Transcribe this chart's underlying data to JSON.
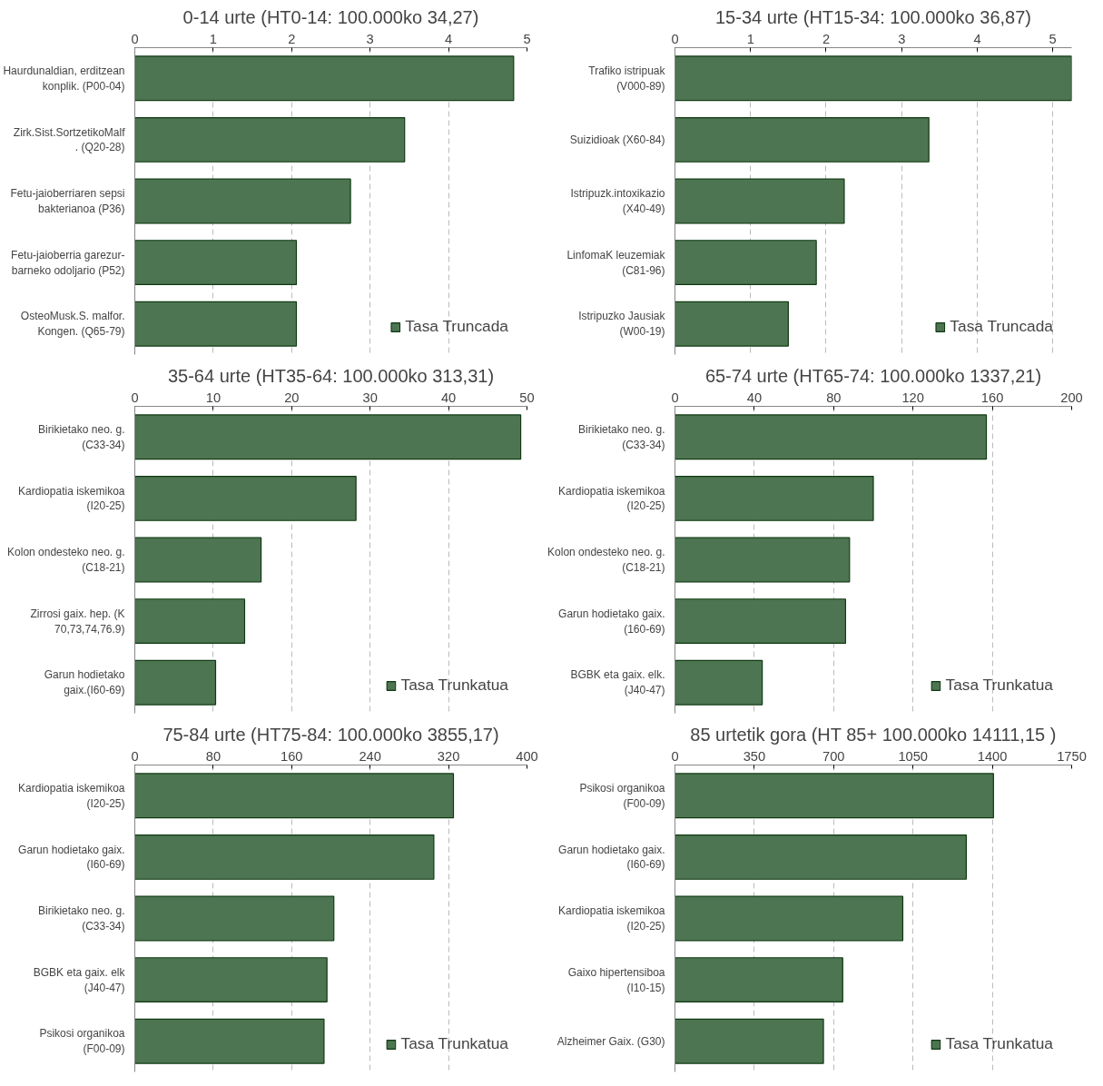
{
  "chart_data": [
    {
      "type": "bar",
      "orientation": "horizontal",
      "title": "0-14 urte (HT0-14: 100.000ko 34,27)",
      "categories": [
        "Haurdunaldian, erditzean konplik. (P00-04)",
        "Zirk.Sist.SortzetikoMalf. (Q20-28)",
        "Fetu-jaioberriaren sepsi bakterianoa (P36)",
        "Fetu-jaioberria garezur-barneko odoljario (P52)",
        "OsteoMusk.S. malfor. Kongen. (Q65-79)"
      ],
      "series": [
        {
          "name": "Tasa Truncada",
          "color": "#4e7552",
          "values": [
            4.83,
            3.44,
            2.75,
            2.06,
            2.06
          ]
        }
      ],
      "xlim": [
        0,
        5
      ],
      "xticks": [
        0,
        1,
        2,
        3,
        4,
        5
      ],
      "grid": "x",
      "legend": "bottom right"
    },
    {
      "type": "bar",
      "orientation": "horizontal",
      "title": "15-34 urte (HT15-34: 100.000ko 36,87)",
      "categories": [
        "Trafiko istripuak (V000-89)",
        "Suizidioak (X60-84)",
        "Istripuzk.intoxikazio (X40-49)",
        "LinfomaK leuzemiak (C81-96)",
        "Istripuzko Jausiak (W00-19)"
      ],
      "series": [
        {
          "name": "Tasa Truncada",
          "color": "#4e7552",
          "values": [
            5.25,
            3.36,
            2.24,
            1.87,
            1.5
          ]
        }
      ],
      "xlim": [
        0,
        5.25
      ],
      "xticks": [
        0,
        1,
        2,
        3,
        4,
        5
      ],
      "grid": "x",
      "legend": "bottom right"
    },
    {
      "type": "bar",
      "orientation": "horizontal",
      "title": "35-64 urte (HT35-64: 100.000ko 313,31)",
      "categories": [
        "Birikietako neo. g. (C33-34)",
        "Kardiopatia iskemikoa (I20-25)",
        "Kolon ondesteko neo. g. (C18-21)",
        "Zirrosi gaix. hep. (K 70,73,74,76.9)",
        "Garun hodietako gaix.(I60-69)"
      ],
      "series": [
        {
          "name": "Tasa Trunkatua",
          "color": "#4e7552",
          "values": [
            49.2,
            28.2,
            16.1,
            14.0,
            10.3
          ]
        }
      ],
      "xlim": [
        0,
        50
      ],
      "xticks": [
        0,
        10,
        20,
        30,
        40,
        50
      ],
      "grid": "x",
      "legend": "bottom right"
    },
    {
      "type": "bar",
      "orientation": "horizontal",
      "title": "65-74 urte (HT65-74: 100.000ko 1337,21)",
      "categories": [
        "Birikietako neo. g. (C33-34)",
        "Kardiopatia iskemikoa (I20-25)",
        "Kolon ondesteko neo. g. (C18-21)",
        "Garun hodietako gaix. (160-69)",
        "BGBK eta gaix. elk. (J40-47)"
      ],
      "series": [
        {
          "name": "Tasa Trunkatua",
          "color": "#4e7552",
          "values": [
            157,
            100,
            88,
            86,
            44
          ]
        }
      ],
      "xlim": [
        0,
        200
      ],
      "xticks": [
        0,
        40,
        80,
        120,
        160,
        200
      ],
      "grid": "x",
      "legend": "bottom right"
    },
    {
      "type": "bar",
      "orientation": "horizontal",
      "title": "75-84 urte (HT75-84: 100.000ko 3855,17)",
      "categories": [
        "Kardiopatia iskemikoa (I20-25)",
        "Garun hodietako gaix. (I60-69)",
        "Birikietako neo. g. (C33-34)",
        "BGBK eta gaix. elk (J40-47)",
        "Psikosi organikoa (F00-09)"
      ],
      "series": [
        {
          "name": "Tasa Trunkatua",
          "color": "#4e7552",
          "values": [
            325,
            305,
            203,
            196,
            193
          ]
        }
      ],
      "xlim": [
        0,
        400
      ],
      "xticks": [
        0,
        80,
        160,
        240,
        320,
        400
      ],
      "grid": "x",
      "legend": "bottom right"
    },
    {
      "type": "bar",
      "orientation": "horizontal",
      "title": "85 urtetik gora (HT 85+ 100.000ko 14111,15 )",
      "categories": [
        "Psikosi organikoa (F00-09)",
        "Garun hodietako gaix. (I60-69)",
        "Kardiopatia iskemikoa (I20-25)",
        "Gaixo hipertensiboa (I10-15)",
        "Alzheimer Gaix. (G30)"
      ],
      "series": [
        {
          "name": "Tasa Trunkatua",
          "color": "#4e7552",
          "values": [
            1405,
            1285,
            1005,
            740,
            655
          ]
        }
      ],
      "xlim": [
        0,
        1750
      ],
      "xticks": [
        0,
        350,
        700,
        1050,
        1400,
        1750
      ],
      "grid": "x",
      "legend": "bottom right"
    }
  ]
}
